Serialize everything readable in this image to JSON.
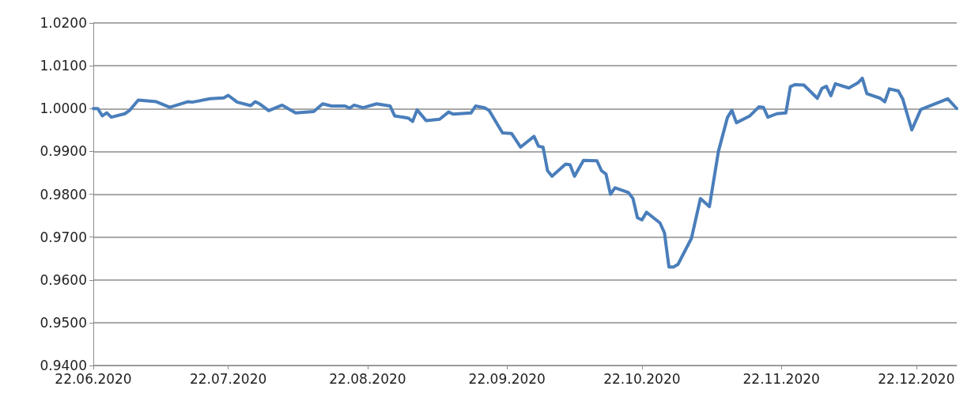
{
  "chart_data": {
    "type": "line",
    "x": [
      "2020-06-22",
      "2020-06-23",
      "2020-06-24",
      "2020-06-25",
      "2020-06-26",
      "2020-06-29",
      "2020-06-30",
      "2020-07-02",
      "2020-07-06",
      "2020-07-09",
      "2020-07-13",
      "2020-07-14",
      "2020-07-18",
      "2020-07-21",
      "2020-07-22",
      "2020-07-24",
      "2020-07-27",
      "2020-07-28",
      "2020-07-29",
      "2020-07-31",
      "2020-08-03",
      "2020-08-06",
      "2020-08-10",
      "2020-08-12",
      "2020-08-14",
      "2020-08-17",
      "2020-08-18",
      "2020-08-19",
      "2020-08-21",
      "2020-08-24",
      "2020-08-27",
      "2020-08-28",
      "2020-08-31",
      "2020-09-01",
      "2020-09-02",
      "2020-09-04",
      "2020-09-07",
      "2020-09-09",
      "2020-09-10",
      "2020-09-14",
      "2020-09-15",
      "2020-09-17",
      "2020-09-18",
      "2020-09-21",
      "2020-09-23",
      "2020-09-25",
      "2020-09-28",
      "2020-09-29",
      "2020-09-30",
      "2020-10-01",
      "2020-10-02",
      "2020-10-05",
      "2020-10-06",
      "2020-10-07",
      "2020-10-09",
      "2020-10-12",
      "2020-10-13",
      "2020-10-14",
      "2020-10-15",
      "2020-10-16",
      "2020-10-19",
      "2020-10-20",
      "2020-10-21",
      "2020-10-22",
      "2020-10-23",
      "2020-10-26",
      "2020-10-27",
      "2020-10-28",
      "2020-10-29",
      "2020-10-30",
      "2020-11-02",
      "2020-11-04",
      "2020-11-06",
      "2020-11-08",
      "2020-11-10",
      "2020-11-11",
      "2020-11-12",
      "2020-11-15",
      "2020-11-17",
      "2020-11-18",
      "2020-11-19",
      "2020-11-21",
      "2020-11-23",
      "2020-11-24",
      "2020-11-25",
      "2020-11-27",
      "2020-11-30",
      "2020-12-01",
      "2020-12-02",
      "2020-12-03",
      "2020-12-04",
      "2020-12-07",
      "2020-12-09",
      "2020-12-10",
      "2020-12-11",
      "2020-12-14",
      "2020-12-15",
      "2020-12-16",
      "2020-12-18",
      "2020-12-19",
      "2020-12-21",
      "2020-12-23",
      "2020-12-29",
      "2020-12-31"
    ],
    "series": [
      {
        "color": "#4a7ebb",
        "values": [
          1.0,
          1.0,
          0.9983,
          0.999,
          0.998,
          0.9988,
          0.9995,
          1.002,
          1.0016,
          1.0003,
          1.0016,
          1.0015,
          1.0023,
          1.0025,
          1.0031,
          1.0015,
          1.0007,
          1.0016,
          1.0011,
          0.9995,
          1.0008,
          0.999,
          0.9993,
          1.0011,
          1.0006,
          1.0006,
          1.0001,
          1.0008,
          1.0002,
          1.0011,
          1.0006,
          0.9983,
          0.9978,
          0.997,
          0.9997,
          0.9972,
          0.9975,
          0.9992,
          0.9987,
          0.999,
          1.0006,
          1.0002,
          0.9996,
          0.9943,
          0.9942,
          0.991,
          0.9935,
          0.9912,
          0.991,
          0.9855,
          0.9842,
          0.987,
          0.9869,
          0.9842,
          0.9879,
          0.9878,
          0.9855,
          0.9847,
          0.98,
          0.9815,
          0.9804,
          0.979,
          0.9745,
          0.974,
          0.9758,
          0.9733,
          0.971,
          0.963,
          0.963,
          0.9636,
          0.9697,
          0.979,
          0.9771,
          0.99,
          0.9979,
          0.9996,
          0.9967,
          0.9983,
          1.0004,
          1.0003,
          0.998,
          0.9988,
          0.999,
          1.0051,
          1.0056,
          1.0055,
          1.0024,
          1.0047,
          1.0052,
          1.003,
          1.0058,
          1.0048,
          1.006,
          1.0071,
          1.0035,
          1.0024,
          1.0016,
          1.0046,
          1.0041,
          1.0022,
          0.995,
          0.9998,
          1.0023,
          1.0
        ]
      }
    ],
    "xlim": [
      "2020-06-22",
      "2020-12-31"
    ],
    "xticks": [
      {
        "value": "2020-06-22",
        "label": "22.06.2020"
      },
      {
        "value": "2020-07-22",
        "label": "22.07.2020"
      },
      {
        "value": "2020-08-22",
        "label": "22.08.2020"
      },
      {
        "value": "2020-09-22",
        "label": "22.09.2020"
      },
      {
        "value": "2020-10-22",
        "label": "22.10.2020"
      },
      {
        "value": "2020-11-22",
        "label": "22.11.2020"
      },
      {
        "value": "2020-12-22",
        "label": "22.12.2020"
      }
    ],
    "ylim": [
      0.94,
      1.02
    ],
    "yticks": [
      {
        "value": 0.94,
        "label": "0.9400"
      },
      {
        "value": 0.95,
        "label": "0.9500"
      },
      {
        "value": 0.96,
        "label": "0.9600"
      },
      {
        "value": 0.97,
        "label": "0.9700"
      },
      {
        "value": 0.98,
        "label": "0.9800"
      },
      {
        "value": 0.99,
        "label": "0.9900"
      },
      {
        "value": 1.0,
        "label": "1.0000"
      },
      {
        "value": 1.01,
        "label": "1.0100"
      },
      {
        "value": 1.02,
        "label": "1.0200"
      }
    ],
    "grid": "y",
    "marker": "none",
    "line_style": "solid"
  }
}
